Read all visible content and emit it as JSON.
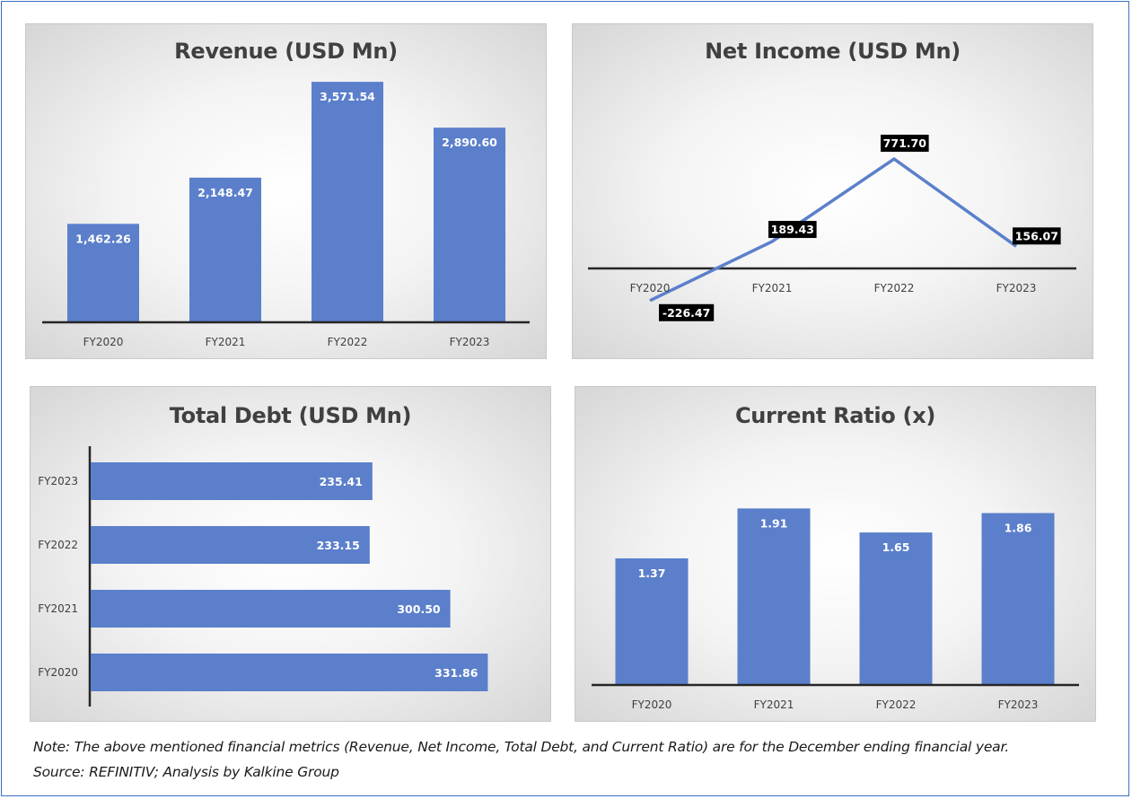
{
  "chart_data": [
    {
      "type": "bar",
      "title": "Revenue (USD Mn)",
      "categories": [
        "FY2020",
        "FY2021",
        "FY2022",
        "FY2023"
      ],
      "values": [
        1462.26,
        2148.47,
        3571.54,
        2890.6
      ],
      "labels": [
        "1,462.26",
        "2,148.47",
        "3,571.54",
        "2,890.60"
      ],
      "ylim": [
        0,
        4000
      ],
      "grid": false,
      "color": "#5b7fcb"
    },
    {
      "type": "line",
      "title": "Net Income (USD Mn)",
      "categories": [
        "FY2020",
        "FY2021",
        "FY2022",
        "FY2023"
      ],
      "values": [
        -226.47,
        189.43,
        771.7,
        156.07
      ],
      "labels": [
        "-226.47",
        "189.43",
        "771.70",
        "156.07"
      ],
      "ylim": [
        -400,
        1000
      ],
      "grid": false,
      "color": "#5b7fcb"
    },
    {
      "type": "bar",
      "orientation": "horizontal",
      "title": "Total Debt (USD Mn)",
      "categories": [
        "FY2023",
        "FY2022",
        "FY2021",
        "FY2020"
      ],
      "values": [
        235.41,
        233.15,
        300.5,
        331.86
      ],
      "labels": [
        "235.41",
        "233.15",
        "300.50",
        "331.86"
      ],
      "xlim": [
        0,
        350
      ],
      "grid": false,
      "color": "#5b7fcb"
    },
    {
      "type": "bar",
      "title": "Current Ratio (x)",
      "categories": [
        "FY2020",
        "FY2021",
        "FY2022",
        "FY2023"
      ],
      "values": [
        1.37,
        1.91,
        1.65,
        1.86
      ],
      "labels": [
        "1.37",
        "1.91",
        "1.65",
        "1.86"
      ],
      "ylim": [
        0,
        2.2
      ],
      "grid": false,
      "color": "#5b7fcb"
    }
  ],
  "footer": {
    "note": "Note: The above mentioned financial metrics (Revenue, Net Income, Total Debt, and Current Ratio) are for the December ending financial year.",
    "source": "Source: REFINITIV; Analysis by Kalkine Group"
  }
}
